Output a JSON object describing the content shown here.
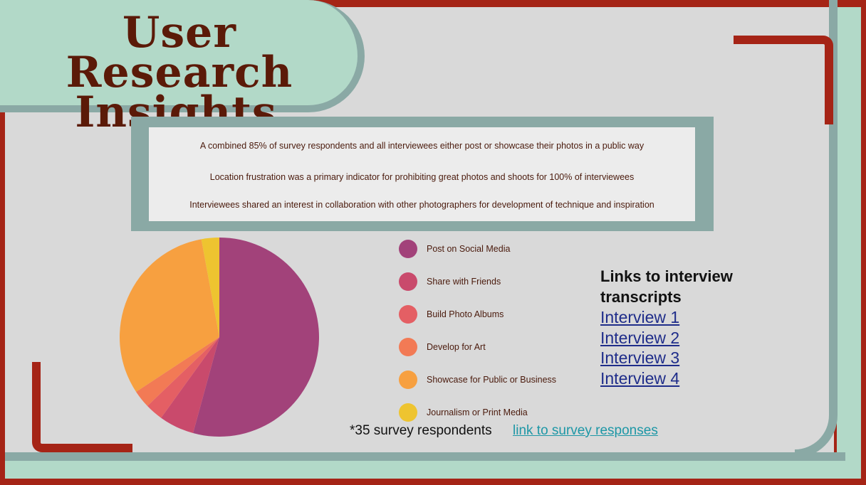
{
  "title": {
    "line1": "User Research",
    "line2": "Insights"
  },
  "insights": [
    "A combined 85% of survey respondents and all interviewees either post or showcase their photos in a public way",
    "Location frustration was a primary indicator for prohibiting great photos and shoots for 100% of interviewees",
    "Interviewees shared an interest in collaboration with other photographers for development of technique and inspiration"
  ],
  "chart_data": {
    "type": "pie",
    "title": "",
    "categories": [
      "Post on Social Media",
      "Share with Friends",
      "Build Photo Albums",
      "Develop for Art",
      "Showcase for Public or Business",
      "Journalism or Print Media"
    ],
    "values": [
      54.3,
      5.7,
      2.9,
      2.9,
      31.4,
      2.9
    ],
    "colors": [
      "#a2427a",
      "#c94a6c",
      "#e45f64",
      "#f27a55",
      "#f7a040",
      "#eec430"
    ],
    "legend_position": "right"
  },
  "links": {
    "heading": "Links to interview transcripts",
    "items": [
      "Interview 1",
      "Interview 2",
      "Interview 3",
      "Interview 4"
    ]
  },
  "footer": {
    "respondents": "*35 survey respondents",
    "survey_link": "link to survey responses"
  }
}
